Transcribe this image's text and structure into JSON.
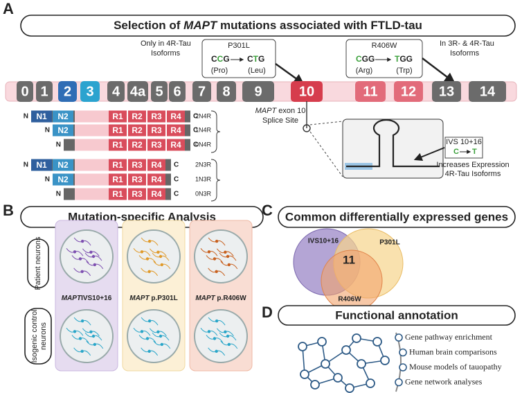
{
  "panel_a": {
    "letter": "A",
    "title": {
      "pre": "Selection of ",
      "em": "MAPT",
      "post": " mutations associated with FTLD-tau"
    },
    "note_4r": [
      "Only in 4R-Tau",
      "Isoforms"
    ],
    "p301l": {
      "name": "P301L",
      "from": [
        {
          "text": "C"
        },
        {
          "text": "C",
          "highlight": true
        },
        {
          "text": "G"
        }
      ],
      "to": [
        {
          "text": "C"
        },
        {
          "text": "T",
          "highlight": true
        },
        {
          "text": "G"
        }
      ],
      "aa_from": "(Pro)",
      "aa_to": "(Leu)"
    },
    "r406w": {
      "name": "R406W",
      "from": [
        {
          "text": "C",
          "highlight": true
        },
        {
          "text": "GG"
        }
      ],
      "to": [
        {
          "text": "T",
          "highlight": true
        },
        {
          "text": "GG"
        }
      ],
      "aa_from": "(Arg)",
      "aa_to": "(Trp)"
    },
    "note_3r4r": [
      "In 3R- & 4R-Tau",
      "Isoforms"
    ],
    "exons": [
      "0",
      "1",
      "2",
      "3",
      "4",
      "4a",
      "5",
      "6",
      "7",
      "8",
      "9",
      "10",
      "11",
      "12",
      "13",
      "14"
    ],
    "splice_site": {
      "em": "MAPT",
      "rest": " exon 10",
      "line2": "Splice Site"
    },
    "ivs": {
      "name": "IVS 10+16",
      "from": "C",
      "to": "T"
    },
    "ivs_effect": [
      "Increases Expression",
      "4R-Tau Isoforms"
    ],
    "isoforms": [
      {
        "n": "N",
        "domains": [
          "N1",
          "N2"
        ],
        "repeats": [
          "R1",
          "R2",
          "R3",
          "R4"
        ],
        "c": "C",
        "label": "2N4R"
      },
      {
        "n": "N",
        "domains": [
          "N2"
        ],
        "repeats": [
          "R1",
          "R2",
          "R3",
          "R4"
        ],
        "c": "C",
        "label": "1N4R"
      },
      {
        "n": "N",
        "domains": [],
        "repeats": [
          "R1",
          "R2",
          "R3",
          "R4"
        ],
        "c": "C",
        "label": "0N4R"
      },
      {
        "n": "N",
        "domains": [
          "N1",
          "N2"
        ],
        "repeats": [
          "R1",
          "R3",
          "R4"
        ],
        "c": "C",
        "label": "2N3R"
      },
      {
        "n": "N",
        "domains": [
          "N2"
        ],
        "repeats": [
          "R1",
          "R3",
          "R4"
        ],
        "c": "C",
        "label": "1N3R"
      },
      {
        "n": "N",
        "domains": [],
        "repeats": [
          "R1",
          "R3",
          "R4"
        ],
        "c": "C",
        "label": "0N3R"
      }
    ]
  },
  "panel_b": {
    "letter": "B",
    "title": "Mutation-specific Analysis",
    "rows": [
      "Patient neurons",
      [
        "Isogenic control",
        "neurons"
      ]
    ],
    "lines": [
      {
        "em": "MAPT",
        "rest": "IVS10+16"
      },
      {
        "em": "MAPT",
        "rest": " p.P301L"
      },
      {
        "em": "MAPT",
        "rest": " p.R406W"
      }
    ]
  },
  "panel_c": {
    "letter": "C",
    "title": "Common differentially expressed genes",
    "sets": [
      "IVS10+16",
      "P301L",
      "R406W"
    ],
    "overlap": "11"
  },
  "panel_d": {
    "letter": "D",
    "title": "Functional annotation",
    "items": [
      "Gene pathway enrichment",
      "Human brain comparisons",
      "Mouse models of tauopathy",
      "Gene network analyses"
    ]
  }
}
